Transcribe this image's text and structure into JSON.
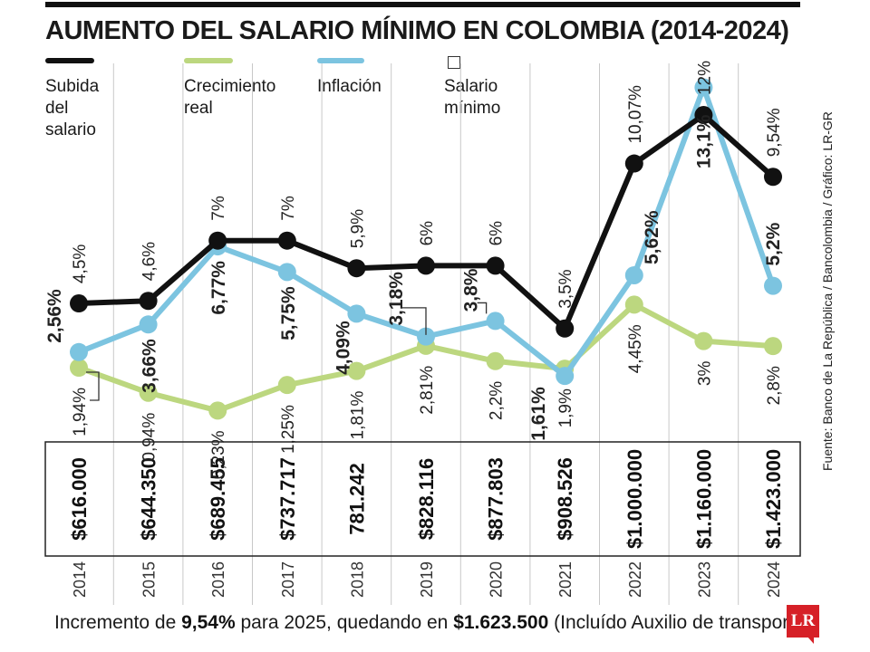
{
  "title": "AUMENTO DEL SALARIO MÍNIMO EN COLOMBIA (2014-2024)",
  "legend": [
    {
      "key": "subida",
      "label": "Subida\ndel salario",
      "color": "#111111",
      "kind": "line"
    },
    {
      "key": "real",
      "label": "Crecimiento\nreal",
      "color": "#bcd77f",
      "kind": "line"
    },
    {
      "key": "inflacion",
      "label": "Inflación",
      "color": "#7cc4e0",
      "kind": "line"
    },
    {
      "key": "salario",
      "label": "Salario\nmínimo",
      "color": "#333333",
      "kind": "box"
    }
  ],
  "source": "Fuente: Banco de La República / Bancolombia / Gráfico: LR-GR",
  "footer": {
    "prefix": "Incremento de ",
    "rate": "9,54%",
    "middle": " para 2025, quedando en ",
    "amount": "$1.623.500",
    "suffix": " (Incluído Auxilio de transporte)"
  },
  "logo": "LR",
  "chart_data": {
    "type": "line",
    "categories": [
      "2014",
      "2015",
      "2016",
      "2017",
      "2018",
      "2019",
      "2020",
      "2021",
      "2022",
      "2023",
      "2024"
    ],
    "series": [
      {
        "name": "Subida del salario",
        "color": "#111111",
        "values": [
          4.5,
          4.6,
          7,
          7,
          5.9,
          6,
          6,
          3.5,
          10.07,
          12,
          9.54
        ],
        "labels": [
          "4,5%",
          "4,6%",
          "7%",
          "7%",
          "5,9%",
          "6%",
          "6%",
          "3,5%",
          "10,07%",
          "12%",
          "9,54%"
        ]
      },
      {
        "name": "Crecimiento real",
        "color": "#bcd77f",
        "values": [
          1.94,
          0.94,
          0.23,
          1.25,
          1.81,
          2.81,
          2.2,
          1.9,
          4.45,
          3,
          2.8
        ],
        "labels": [
          "1,94%",
          "0,94%",
          "0,23%",
          "1,25%",
          "1,81%",
          "2,81%",
          "2,2%",
          "1,9%",
          "4,45%",
          "3%",
          "2,8%"
        ]
      },
      {
        "name": "Inflación",
        "color": "#7cc4e0",
        "values": [
          2.56,
          3.66,
          6.77,
          5.75,
          4.09,
          3.18,
          3.8,
          1.61,
          5.62,
          13.1,
          5.2
        ],
        "labels": [
          "2,56%",
          "3,66%",
          "6,77%",
          "5,75%",
          "4,09%",
          "3,18%",
          "3,8%",
          "1,61%",
          "5,62%",
          "13,1%",
          "5,2%"
        ]
      }
    ],
    "salario_minimo": [
      "$616.000",
      "$644.350",
      "$689.455",
      "$737.717",
      "781.242",
      "$828.116",
      "$877.803",
      "$908.526",
      "$1.000.000",
      "$1.160.000",
      "$1.423.000"
    ],
    "grid": "vertical"
  }
}
